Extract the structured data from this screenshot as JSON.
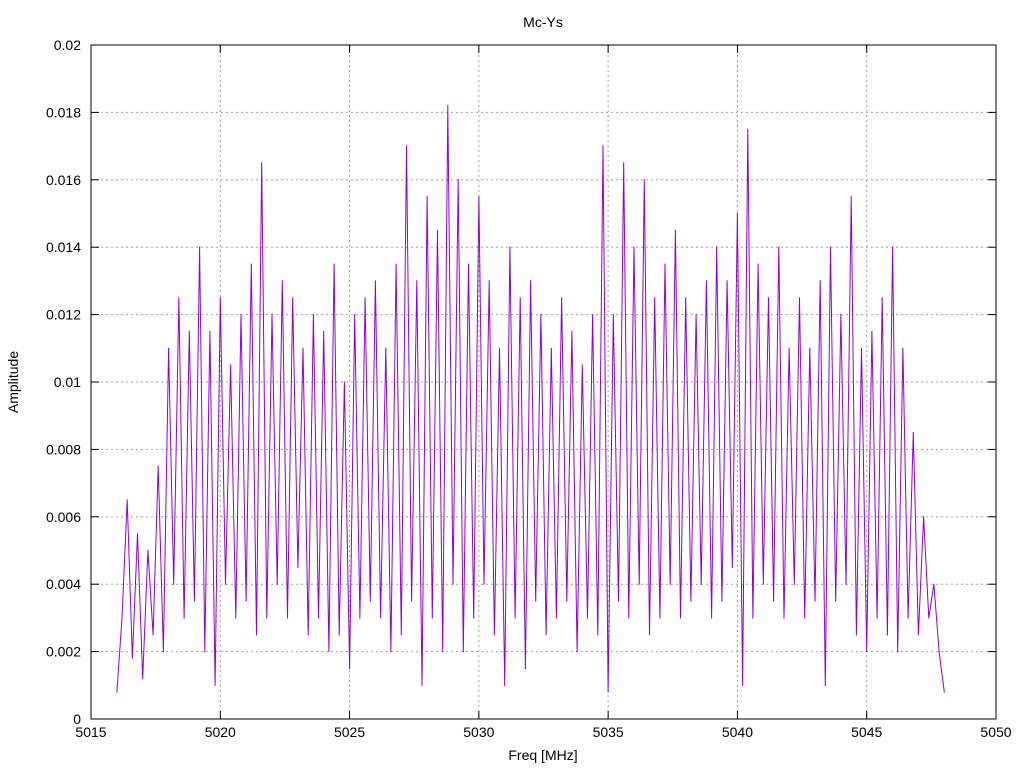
{
  "chart_data": {
    "type": "line",
    "title": "Mc-Ys",
    "xlabel": "Freq [MHz]",
    "ylabel": "Amplitude",
    "xlim": [
      5015,
      5050
    ],
    "ylim": [
      0,
      0.02
    ],
    "x_ticks": [
      "5015",
      "5020",
      "5025",
      "5030",
      "5035",
      "5040",
      "5045",
      "5050"
    ],
    "y_ticks": [
      "0",
      "0.002",
      "0.004",
      "0.006",
      "0.008",
      "0.01",
      "0.012",
      "0.014",
      "0.016",
      "0.018",
      "0.02"
    ],
    "grid": true,
    "legend": "none",
    "series": [
      {
        "color": "#9400d3",
        "x": [
          5016.0,
          5016.2,
          5016.4,
          5016.6,
          5016.8,
          5017.0,
          5017.2,
          5017.4,
          5017.6,
          5017.8,
          5018.0,
          5018.2,
          5018.4,
          5018.6,
          5018.8,
          5019.0,
          5019.2,
          5019.4,
          5019.6,
          5019.8,
          5020.0,
          5020.2,
          5020.4,
          5020.6,
          5020.8,
          5021.0,
          5021.2,
          5021.4,
          5021.6,
          5021.8,
          5022.0,
          5022.2,
          5022.4,
          5022.6,
          5022.8,
          5023.0,
          5023.2,
          5023.4,
          5023.6,
          5023.8,
          5024.0,
          5024.2,
          5024.4,
          5024.6,
          5024.8,
          5025.0,
          5025.2,
          5025.4,
          5025.6,
          5025.8,
          5026.0,
          5026.2,
          5026.4,
          5026.6,
          5026.8,
          5027.0,
          5027.2,
          5027.4,
          5027.6,
          5027.8,
          5028.0,
          5028.2,
          5028.4,
          5028.6,
          5028.8,
          5029.0,
          5029.2,
          5029.4,
          5029.6,
          5029.8,
          5030.0,
          5030.2,
          5030.4,
          5030.6,
          5030.8,
          5031.0,
          5031.2,
          5031.4,
          5031.6,
          5031.8,
          5032.0,
          5032.2,
          5032.4,
          5032.6,
          5032.8,
          5033.0,
          5033.2,
          5033.4,
          5033.6,
          5033.8,
          5034.0,
          5034.2,
          5034.4,
          5034.6,
          5034.8,
          5035.0,
          5035.2,
          5035.4,
          5035.6,
          5035.8,
          5036.0,
          5036.2,
          5036.4,
          5036.6,
          5036.8,
          5037.0,
          5037.2,
          5037.4,
          5037.6,
          5037.8,
          5038.0,
          5038.2,
          5038.4,
          5038.6,
          5038.8,
          5039.0,
          5039.2,
          5039.4,
          5039.6,
          5039.8,
          5040.0,
          5040.2,
          5040.4,
          5040.6,
          5040.8,
          5041.0,
          5041.2,
          5041.4,
          5041.6,
          5041.8,
          5042.0,
          5042.2,
          5042.4,
          5042.6,
          5042.8,
          5043.0,
          5043.2,
          5043.4,
          5043.6,
          5043.8,
          5044.0,
          5044.2,
          5044.4,
          5044.6,
          5044.8,
          5045.0,
          5045.2,
          5045.4,
          5045.6,
          5045.8,
          5046.0,
          5046.2,
          5046.4,
          5046.6,
          5046.8,
          5047.0,
          5047.2,
          5047.4,
          5047.6,
          5047.8,
          5048.0
        ],
        "values": [
          0.0008,
          0.003,
          0.0065,
          0.0018,
          0.0055,
          0.0012,
          0.005,
          0.0025,
          0.0075,
          0.002,
          0.011,
          0.004,
          0.0125,
          0.003,
          0.0115,
          0.0035,
          0.014,
          0.002,
          0.0115,
          0.001,
          0.0125,
          0.004,
          0.0105,
          0.003,
          0.012,
          0.0035,
          0.0135,
          0.0025,
          0.0165,
          0.003,
          0.012,
          0.004,
          0.013,
          0.003,
          0.0125,
          0.0045,
          0.011,
          0.0025,
          0.012,
          0.003,
          0.0115,
          0.002,
          0.0135,
          0.0025,
          0.01,
          0.0015,
          0.012,
          0.003,
          0.0125,
          0.0035,
          0.013,
          0.003,
          0.011,
          0.002,
          0.0135,
          0.0025,
          0.017,
          0.0035,
          0.013,
          0.001,
          0.0155,
          0.003,
          0.0145,
          0.002,
          0.0182,
          0.004,
          0.016,
          0.002,
          0.0135,
          0.003,
          0.0155,
          0.004,
          0.013,
          0.0025,
          0.011,
          0.001,
          0.014,
          0.003,
          0.0125,
          0.0015,
          0.013,
          0.0035,
          0.012,
          0.0025,
          0.011,
          0.003,
          0.0125,
          0.0035,
          0.0115,
          0.002,
          0.0105,
          0.003,
          0.012,
          0.0025,
          0.017,
          0.0008,
          0.012,
          0.0035,
          0.0165,
          0.003,
          0.014,
          0.004,
          0.016,
          0.0025,
          0.0125,
          0.003,
          0.0135,
          0.004,
          0.0145,
          0.003,
          0.0125,
          0.0035,
          0.012,
          0.004,
          0.013,
          0.003,
          0.014,
          0.0035,
          0.013,
          0.0045,
          0.015,
          0.001,
          0.0175,
          0.003,
          0.0135,
          0.004,
          0.0125,
          0.0035,
          0.014,
          0.003,
          0.011,
          0.004,
          0.0125,
          0.003,
          0.011,
          0.0035,
          0.013,
          0.001,
          0.014,
          0.0035,
          0.012,
          0.004,
          0.0155,
          0.0025,
          0.011,
          0.002,
          0.0115,
          0.003,
          0.0125,
          0.0025,
          0.014,
          0.002,
          0.011,
          0.003,
          0.0085,
          0.0025,
          0.006,
          0.003,
          0.004,
          0.002,
          0.0008
        ]
      }
    ]
  }
}
